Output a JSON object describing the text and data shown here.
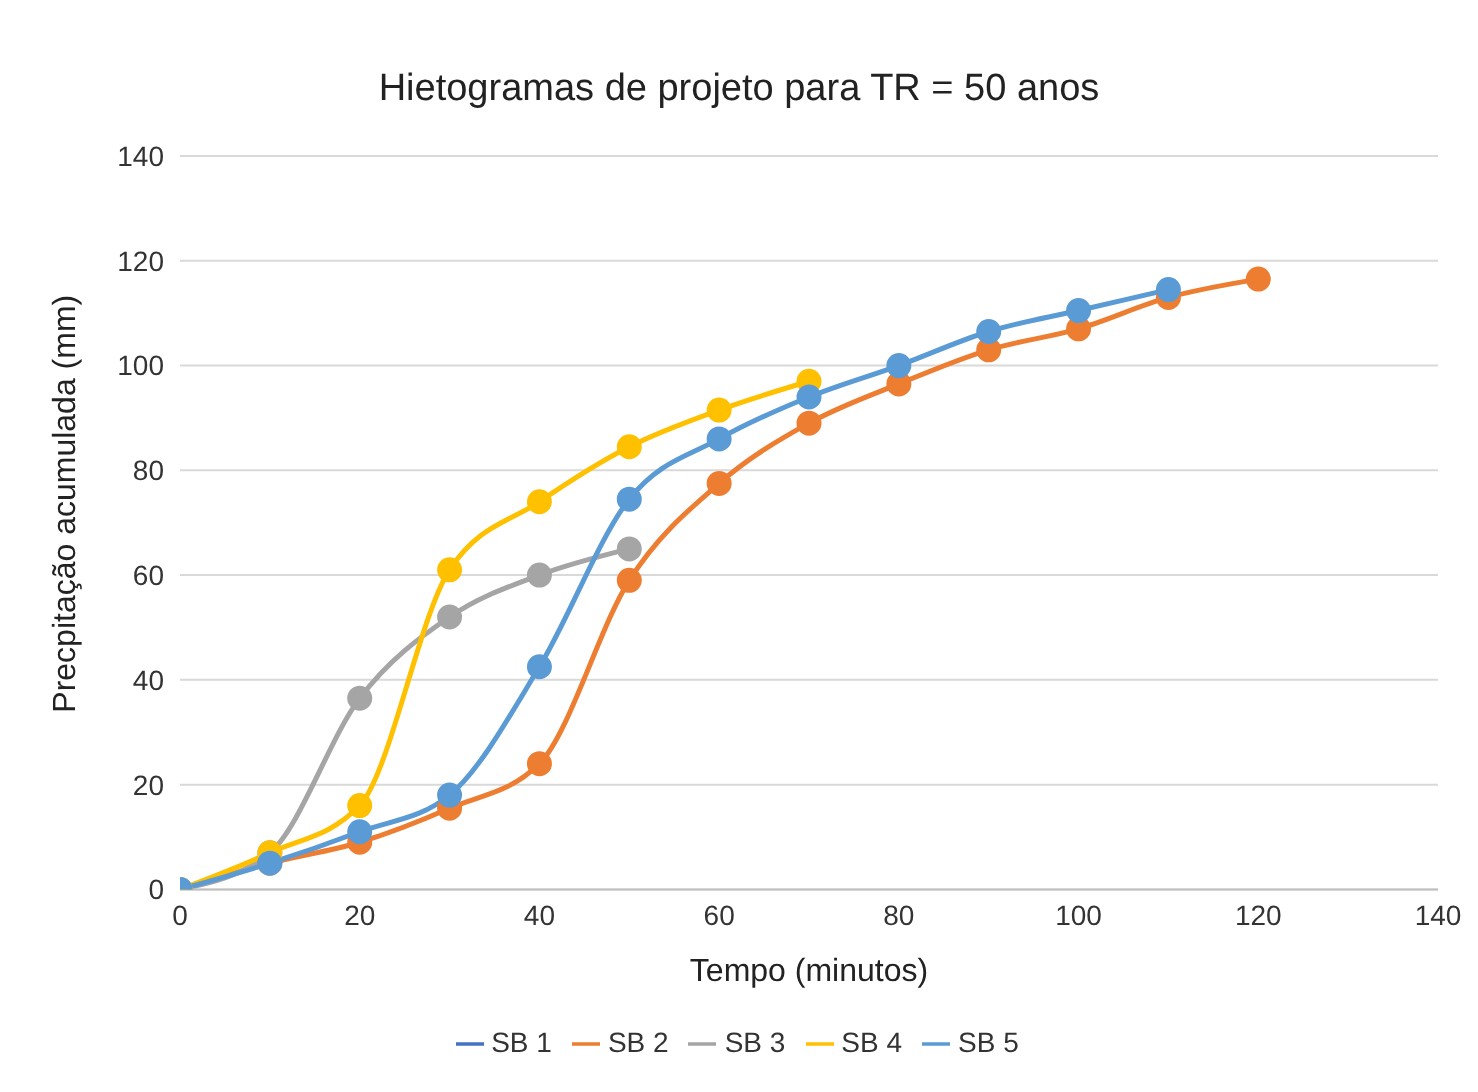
{
  "chart_data": {
    "type": "line",
    "title": "Hietogramas de projeto para TR = 50 anos",
    "xlabel": "Tempo  (minutos)",
    "ylabel": "Precpitação acumulada (mm)",
    "x": [
      0,
      10,
      20,
      30,
      40,
      50,
      60,
      70,
      80,
      90,
      100,
      110,
      120
    ],
    "series": [
      {
        "name": "SB 1",
        "color": "#4472c4",
        "values": [
          null,
          null,
          null,
          null,
          null,
          null,
          null,
          null,
          null,
          null,
          null,
          null,
          null
        ]
      },
      {
        "name": "SB 2",
        "color": "#ed7d31",
        "values": [
          0,
          5,
          9,
          15.5,
          24,
          59,
          77.5,
          89,
          96.5,
          103,
          107,
          113,
          116.5
        ]
      },
      {
        "name": "SB 3",
        "color": "#a5a5a5",
        "values": [
          0,
          7,
          36.5,
          52,
          60,
          65,
          null,
          null,
          null,
          null,
          null,
          null,
          null
        ]
      },
      {
        "name": "SB 4",
        "color": "#ffc000",
        "values": [
          0,
          7,
          16,
          61,
          74,
          84.5,
          91.5,
          97,
          null,
          null,
          null,
          null,
          null
        ]
      },
      {
        "name": "SB 5",
        "color": "#5b9bd5",
        "values": [
          0,
          5,
          11,
          18,
          42.5,
          74.5,
          86,
          94,
          100,
          106.5,
          110.5,
          114.5,
          null
        ]
      }
    ],
    "xlim": [
      0,
      140
    ],
    "xticks": [
      0,
      20,
      40,
      60,
      80,
      100,
      120,
      140
    ],
    "ylim": [
      0,
      140
    ],
    "yticks": [
      0,
      20,
      40,
      60,
      80,
      100,
      120,
      140
    ],
    "grid": "y",
    "legend": "bottom",
    "marker": "circle",
    "line_style": "solid"
  }
}
